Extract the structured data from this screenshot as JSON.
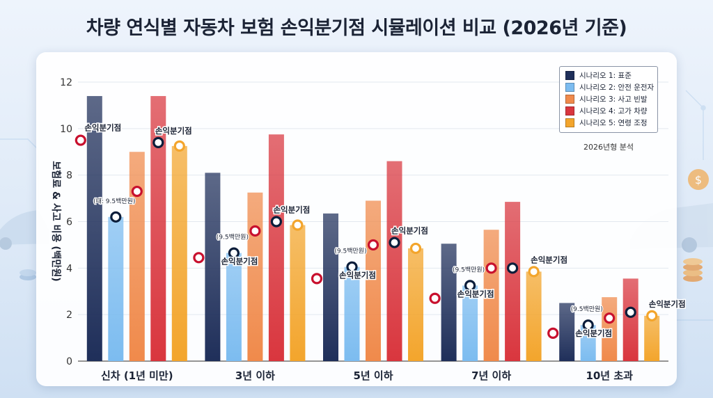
{
  "title": "차량 연식별 자동차 보험 손익분기점 시뮬레이션 비교 (2026년 기준)",
  "note": "2026년형 분석",
  "colors": {
    "series": [
      "#1f2f5a",
      "#7cbcf0",
      "#f08a4b",
      "#d9363e",
      "#f3a52c"
    ],
    "marker_ring": [
      "#c8102e",
      "#0b1d3a",
      "#c8102e",
      "#0b1d3a",
      "#f3a52c"
    ]
  },
  "chart_data": {
    "type": "bar",
    "title": "차량 연식별 자동차 보험 손익분기점 시뮬레이션 비교 (2026년 기준)",
    "ylabel": "보험료 & 사고 비용 (백만원)",
    "xlabel": "",
    "ylim": [
      0,
      12
    ],
    "yticks": [
      0,
      2,
      4,
      6,
      8,
      10,
      12
    ],
    "legend_position": "top-right",
    "categories": [
      "신차 (1년 미만)",
      "3년 이하",
      "5년 이하",
      "7년 이하",
      "10년 초과"
    ],
    "series": [
      {
        "name": "시나리오 1: 표준",
        "values": [
          11.4,
          8.1,
          6.35,
          5.05,
          2.5
        ]
      },
      {
        "name": "시나리오 2: 안전 운전자",
        "values": [
          6.2,
          4.65,
          4.05,
          3.25,
          1.55
        ]
      },
      {
        "name": "시나리오 3: 사고 빈발",
        "values": [
          9.0,
          7.25,
          6.9,
          5.65,
          2.75
        ]
      },
      {
        "name": "시나리오 4: 고가 차량",
        "values": [
          11.4,
          9.75,
          8.6,
          6.85,
          3.55
        ]
      },
      {
        "name": "시나리오 5: 연령 조정",
        "values": [
          9.25,
          5.85,
          4.85,
          3.85,
          1.95
        ]
      }
    ],
    "breakeven_markers": [
      [
        9.5,
        6.2,
        7.3,
        9.4,
        9.25
      ],
      [
        4.45,
        4.65,
        5.6,
        6.0,
        5.85
      ],
      [
        3.55,
        4.05,
        5.0,
        5.1,
        4.85
      ],
      [
        2.7,
        3.25,
        4.0,
        4.0,
        3.85
      ],
      [
        1.2,
        1.55,
        1.85,
        2.1,
        1.95
      ]
    ],
    "annotations": [
      {
        "text": "손익분기점",
        "category": 0,
        "series": 0
      },
      {
        "text": "손익분기점",
        "category": 0,
        "series": 3
      },
      {
        "text": "(때: 9.5백만원)",
        "category": 0,
        "series": 1
      },
      {
        "text": "(9.5백만원)",
        "category": 1,
        "series": 1
      },
      {
        "text": "손익분기점",
        "category": 1,
        "series": 1
      },
      {
        "text": "손익분기점",
        "category": 1,
        "series": 3
      },
      {
        "text": "(9.5백만원)",
        "category": 2,
        "series": 1
      },
      {
        "text": "손익분기점",
        "category": 2,
        "series": 1
      },
      {
        "text": "손익분기점",
        "category": 2,
        "series": 3
      },
      {
        "text": "(9.5백만원)",
        "category": 3,
        "series": 1
      },
      {
        "text": "손익분기점",
        "category": 3,
        "series": 1
      },
      {
        "text": "손익분기점",
        "category": 3,
        "series": 4
      },
      {
        "text": "(9.5백만원)",
        "category": 4,
        "series": 1
      },
      {
        "text": "손익분기점",
        "category": 4,
        "series": 1
      },
      {
        "text": "손익분기점",
        "category": 4,
        "series": 4
      }
    ]
  }
}
